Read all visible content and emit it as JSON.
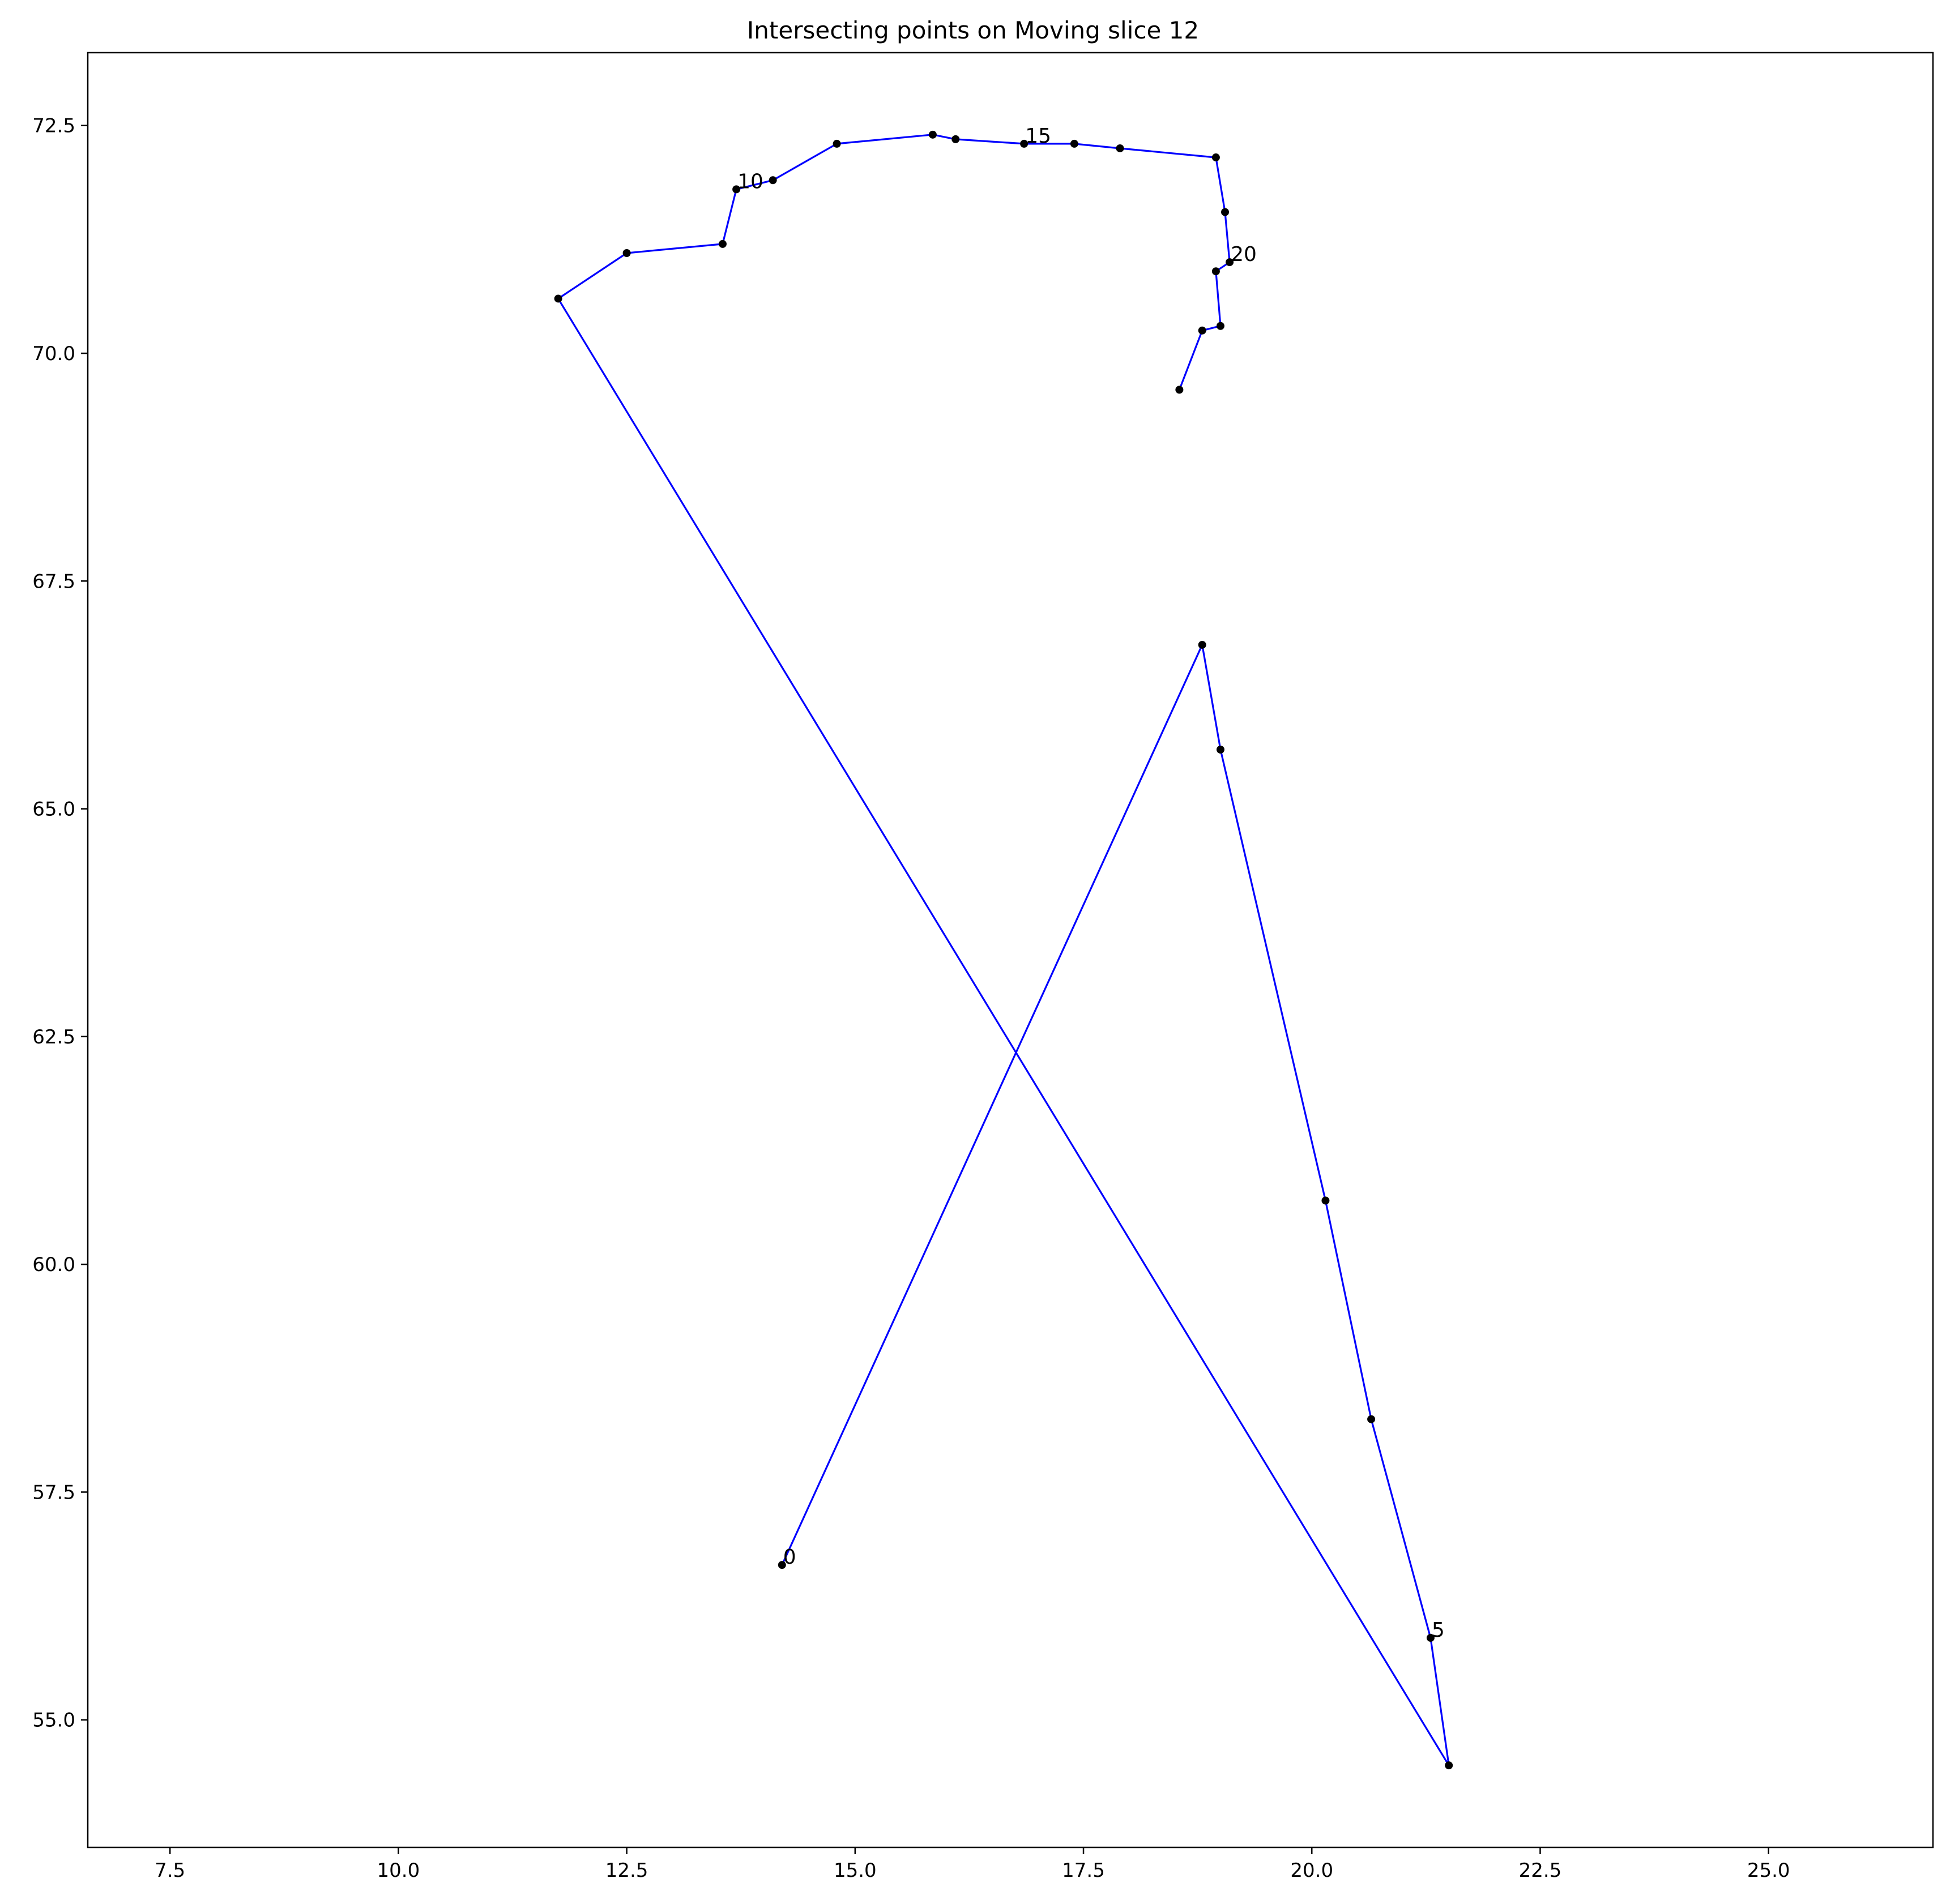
{
  "chart_data": {
    "type": "line",
    "title": "Intersecting points on Moving slice 12",
    "xlabel": "",
    "ylabel": "",
    "xlim": [
      6.6,
      26.8
    ],
    "ylim": [
      53.6,
      73.3
    ],
    "xticks": [
      "7.5",
      "10.0",
      "12.5",
      "15.0",
      "17.5",
      "20.0",
      "22.5",
      "25.0"
    ],
    "yticks": [
      "55.0",
      "57.5",
      "60.0",
      "62.5",
      "65.0",
      "67.5",
      "70.0",
      "72.5"
    ],
    "grid": false,
    "line_color": "#0000ff",
    "marker_color": "#000000",
    "x": [
      14.2,
      18.8,
      19.0,
      20.15,
      20.65,
      21.3,
      21.5,
      11.75,
      12.5,
      13.55,
      13.7,
      14.1,
      14.8,
      15.85,
      16.1,
      16.85,
      17.4,
      17.9,
      18.95,
      19.05,
      19.1,
      18.95,
      19.0,
      18.8,
      18.55
    ],
    "y": [
      56.7,
      66.8,
      65.65,
      60.7,
      58.3,
      55.9,
      54.5,
      70.6,
      71.1,
      71.2,
      71.8,
      71.9,
      72.3,
      72.4,
      72.35,
      72.3,
      72.3,
      72.25,
      72.15,
      71.55,
      71.0,
      70.9,
      70.3,
      70.25,
      69.6
    ],
    "point_labels": [
      {
        "index": 0,
        "text": "0"
      },
      {
        "index": 5,
        "text": "5"
      },
      {
        "index": 10,
        "text": "10"
      },
      {
        "index": 15,
        "text": "15"
      },
      {
        "index": 20,
        "text": "20"
      }
    ]
  }
}
